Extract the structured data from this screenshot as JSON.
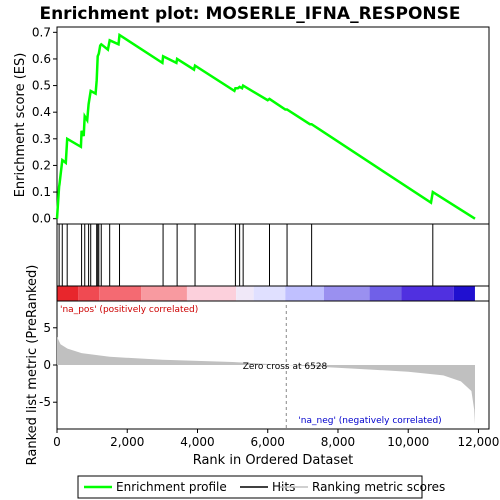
{
  "chart_data": {
    "type": "line",
    "title": "Enrichment plot: MOSERLE_IFNA_RESPONSE",
    "colors": {
      "profile": "#00ff00",
      "hits": "#000000",
      "metric": "#c0c0c0",
      "pos_label": "#cc0000",
      "neg_label": "#0000cc",
      "zero_line": "#888888"
    },
    "es_panel": {
      "ylabel": "Enrichment score (ES)",
      "ylim": [
        -0.02,
        0.72
      ],
      "yticks": [
        0.0,
        0.1,
        0.2,
        0.3,
        0.4,
        0.5,
        0.6,
        0.7
      ],
      "ytick_labels": [
        "0.0",
        "0.1",
        "0.2",
        "0.3",
        "0.4",
        "0.5",
        "0.6",
        "0.7"
      ],
      "profile": {
        "name": "Enrichment profile",
        "x": [
          0,
          60,
          70,
          150,
          250,
          290,
          680,
          700,
          760,
          790,
          860,
          900,
          960,
          1100,
          1130,
          1160,
          1190,
          1230,
          1260,
          1450,
          1500,
          1750,
          1780,
          3000,
          3020,
          3400,
          3420,
          3900,
          3930,
          5050,
          5080,
          5150,
          5200,
          5270,
          5300,
          6000,
          6050,
          6500,
          6550,
          7200,
          7250,
          10650,
          10700,
          11900
        ],
        "y": [
          0.0,
          0.12,
          0.13,
          0.22,
          0.21,
          0.3,
          0.27,
          0.33,
          0.31,
          0.385,
          0.37,
          0.43,
          0.48,
          0.47,
          0.52,
          0.61,
          0.62,
          0.65,
          0.655,
          0.635,
          0.67,
          0.655,
          0.69,
          0.585,
          0.61,
          0.585,
          0.6,
          0.56,
          0.575,
          0.48,
          0.49,
          0.49,
          0.495,
          0.49,
          0.5,
          0.445,
          0.45,
          0.41,
          0.41,
          0.355,
          0.355,
          0.06,
          0.1,
          0.0
        ]
      }
    },
    "hits": {
      "name": "Hits",
      "x": [
        60,
        150,
        290,
        700,
        790,
        900,
        960,
        1130,
        1160,
        1190,
        1260,
        1500,
        1780,
        3020,
        3420,
        3930,
        5080,
        5200,
        5300,
        6050,
        6550,
        7250,
        10700
      ]
    },
    "heatmap_bar": {
      "colors": [
        "#e8262c",
        "#f04a52",
        "#f46a72",
        "#f89aa0",
        "#fcd0dc",
        "#f0e8f8",
        "#e0e0ff",
        "#c0c0ff",
        "#9a90f0",
        "#7060e8",
        "#5030e0",
        "#2010d0"
      ],
      "breaks": [
        0,
        600,
        1200,
        2400,
        3700,
        5100,
        5600,
        6500,
        7600,
        8900,
        9800,
        11300,
        11900
      ]
    },
    "metric_panel": {
      "name": "Ranking metric scores",
      "ylabel": "Ranked list metric (PreRanked)",
      "ylim": [
        -8.6,
        8.6
      ],
      "yticks": [
        5,
        0,
        -5
      ],
      "ytick_labels": [
        "5",
        "0",
        "-5"
      ],
      "x": [
        0,
        100,
        300,
        700,
        1500,
        3000,
        5000,
        6528,
        8500,
        10000,
        11000,
        11500,
        11800,
        11880,
        11900
      ],
      "y": [
        3.8,
        2.8,
        2.2,
        1.6,
        1.1,
        0.7,
        0.4,
        0.0,
        -0.5,
        -0.9,
        -1.4,
        -2.2,
        -3.5,
        -6.0,
        -8.0
      ],
      "pos_label": "'na_pos' (positively correlated)",
      "neg_label": "'na_neg' (negatively correlated)",
      "zero_cross_label": "Zero cross at 6528",
      "zero_cross_x": 6528
    },
    "xaxis": {
      "xlabel": "Rank in Ordered Dataset",
      "xlim": [
        0,
        12300
      ],
      "xticks": [
        0,
        2000,
        4000,
        6000,
        8000,
        10000,
        12000
      ],
      "xtick_labels": [
        "0",
        "2,000",
        "4,000",
        "6,000",
        "8,000",
        "10,000",
        "12,000"
      ]
    },
    "legend": {
      "placement": "bottom",
      "items": [
        {
          "label": "Enrichment profile",
          "color": "#00ff00",
          "kind": "line"
        },
        {
          "label": "Hits",
          "color": "#000000",
          "kind": "line"
        },
        {
          "label": "Ranking metric scores",
          "color": "#c0c0c0",
          "kind": "line"
        }
      ]
    }
  }
}
